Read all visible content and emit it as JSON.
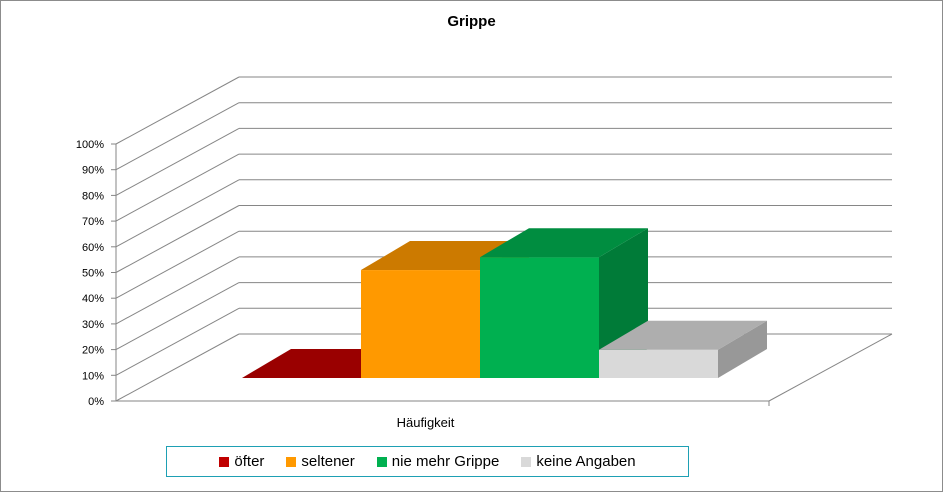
{
  "chart_data": {
    "type": "bar",
    "title": "Grippe",
    "xlabel": "",
    "ylabel": "",
    "categories": [
      "Häufigkeit"
    ],
    "series": [
      {
        "name": "öfter",
        "values": [
          0
        ],
        "color": "#c00000"
      },
      {
        "name": "seltener",
        "values": [
          42
        ],
        "color": "#ff9900"
      },
      {
        "name": "nie mehr Grippe",
        "values": [
          47
        ],
        "color": "#00b050"
      },
      {
        "name": "keine Angaben",
        "values": [
          11
        ],
        "color": "#d9d9d9"
      }
    ],
    "ylim": [
      0,
      100
    ],
    "y_ticks": [
      "0%",
      "10%",
      "20%",
      "30%",
      "40%",
      "50%",
      "60%",
      "70%",
      "80%",
      "90%",
      "100%"
    ],
    "grid": true,
    "style": "3d-column",
    "legend_position": "bottom"
  }
}
